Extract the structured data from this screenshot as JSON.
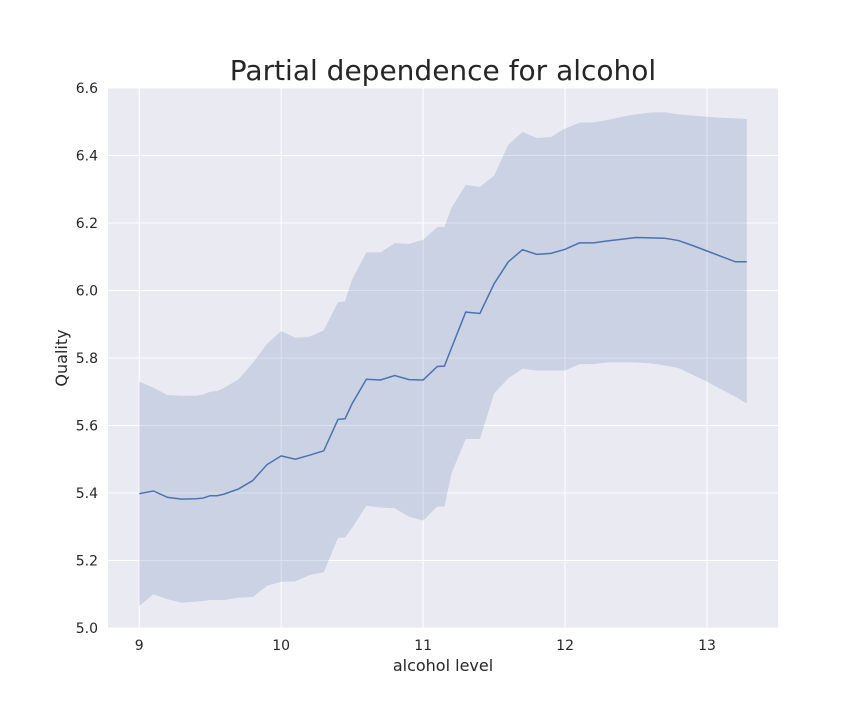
{
  "chart_data": {
    "type": "line",
    "title": "Partial dependence for alcohol",
    "xlabel": "alcohol level",
    "ylabel": "Quality",
    "xlim": [
      8.78,
      13.5
    ],
    "ylim": [
      5.0,
      6.6
    ],
    "xticks": [
      "9",
      "10",
      "11",
      "12",
      "13"
    ],
    "yticks": [
      "5.0",
      "5.2",
      "5.4",
      "5.6",
      "5.8",
      "6.0",
      "6.2",
      "6.4",
      "6.6"
    ],
    "grid": true,
    "legend": "none",
    "colors": {
      "background": "#eaeaf2",
      "grid": "#ffffff",
      "line": "#4c72b0",
      "band": "#4c72b0",
      "band_opacity": 0.2,
      "text": "#262626"
    },
    "series": [
      {
        "x": [
          9.0,
          9.1,
          9.2,
          9.3,
          9.4,
          9.45,
          9.5,
          9.55,
          9.6,
          9.7,
          9.8,
          9.9,
          10.0,
          10.1,
          10.2,
          10.3,
          10.4,
          10.45,
          10.5,
          10.6,
          10.7,
          10.8,
          10.9,
          11.0,
          11.1,
          11.15,
          11.2,
          11.3,
          11.4,
          11.5,
          11.6,
          11.7,
          11.8,
          11.9,
          12.0,
          12.1,
          12.2,
          12.3,
          12.4,
          12.5,
          12.6,
          12.7,
          12.8,
          12.9,
          13.0,
          13.1,
          13.2,
          13.28
        ],
        "y": [
          5.398,
          5.406,
          5.387,
          5.382,
          5.383,
          5.385,
          5.392,
          5.392,
          5.397,
          5.412,
          5.437,
          5.484,
          5.51,
          5.5,
          5.512,
          5.525,
          5.618,
          5.62,
          5.665,
          5.737,
          5.735,
          5.748,
          5.736,
          5.735,
          5.775,
          5.776,
          5.83,
          5.936,
          5.932,
          6.02,
          6.085,
          6.121,
          6.107,
          6.11,
          6.122,
          6.141,
          6.141,
          6.147,
          6.152,
          6.157,
          6.156,
          6.155,
          6.148,
          6.133,
          6.117,
          6.101,
          6.085,
          6.085
        ],
        "lower": [
          5.065,
          5.1,
          5.085,
          5.075,
          5.078,
          5.08,
          5.083,
          5.083,
          5.083,
          5.09,
          5.092,
          5.125,
          5.137,
          5.138,
          5.157,
          5.165,
          5.267,
          5.268,
          5.297,
          5.362,
          5.357,
          5.355,
          5.33,
          5.318,
          5.36,
          5.36,
          5.458,
          5.56,
          5.56,
          5.695,
          5.74,
          5.768,
          5.763,
          5.763,
          5.763,
          5.782,
          5.782,
          5.787,
          5.787,
          5.787,
          5.784,
          5.778,
          5.77,
          5.75,
          5.73,
          5.707,
          5.685,
          5.665
        ],
        "upper": [
          5.73,
          5.712,
          5.69,
          5.688,
          5.688,
          5.692,
          5.7,
          5.702,
          5.712,
          5.737,
          5.785,
          5.842,
          5.88,
          5.86,
          5.863,
          5.882,
          5.965,
          5.968,
          6.033,
          6.113,
          6.113,
          6.14,
          6.138,
          6.15,
          6.188,
          6.188,
          6.245,
          6.313,
          6.307,
          6.34,
          6.432,
          6.47,
          6.452,
          6.455,
          6.48,
          6.497,
          6.498,
          6.505,
          6.515,
          6.522,
          6.527,
          6.528,
          6.522,
          6.518,
          6.515,
          6.512,
          6.51,
          6.508
        ]
      }
    ]
  }
}
